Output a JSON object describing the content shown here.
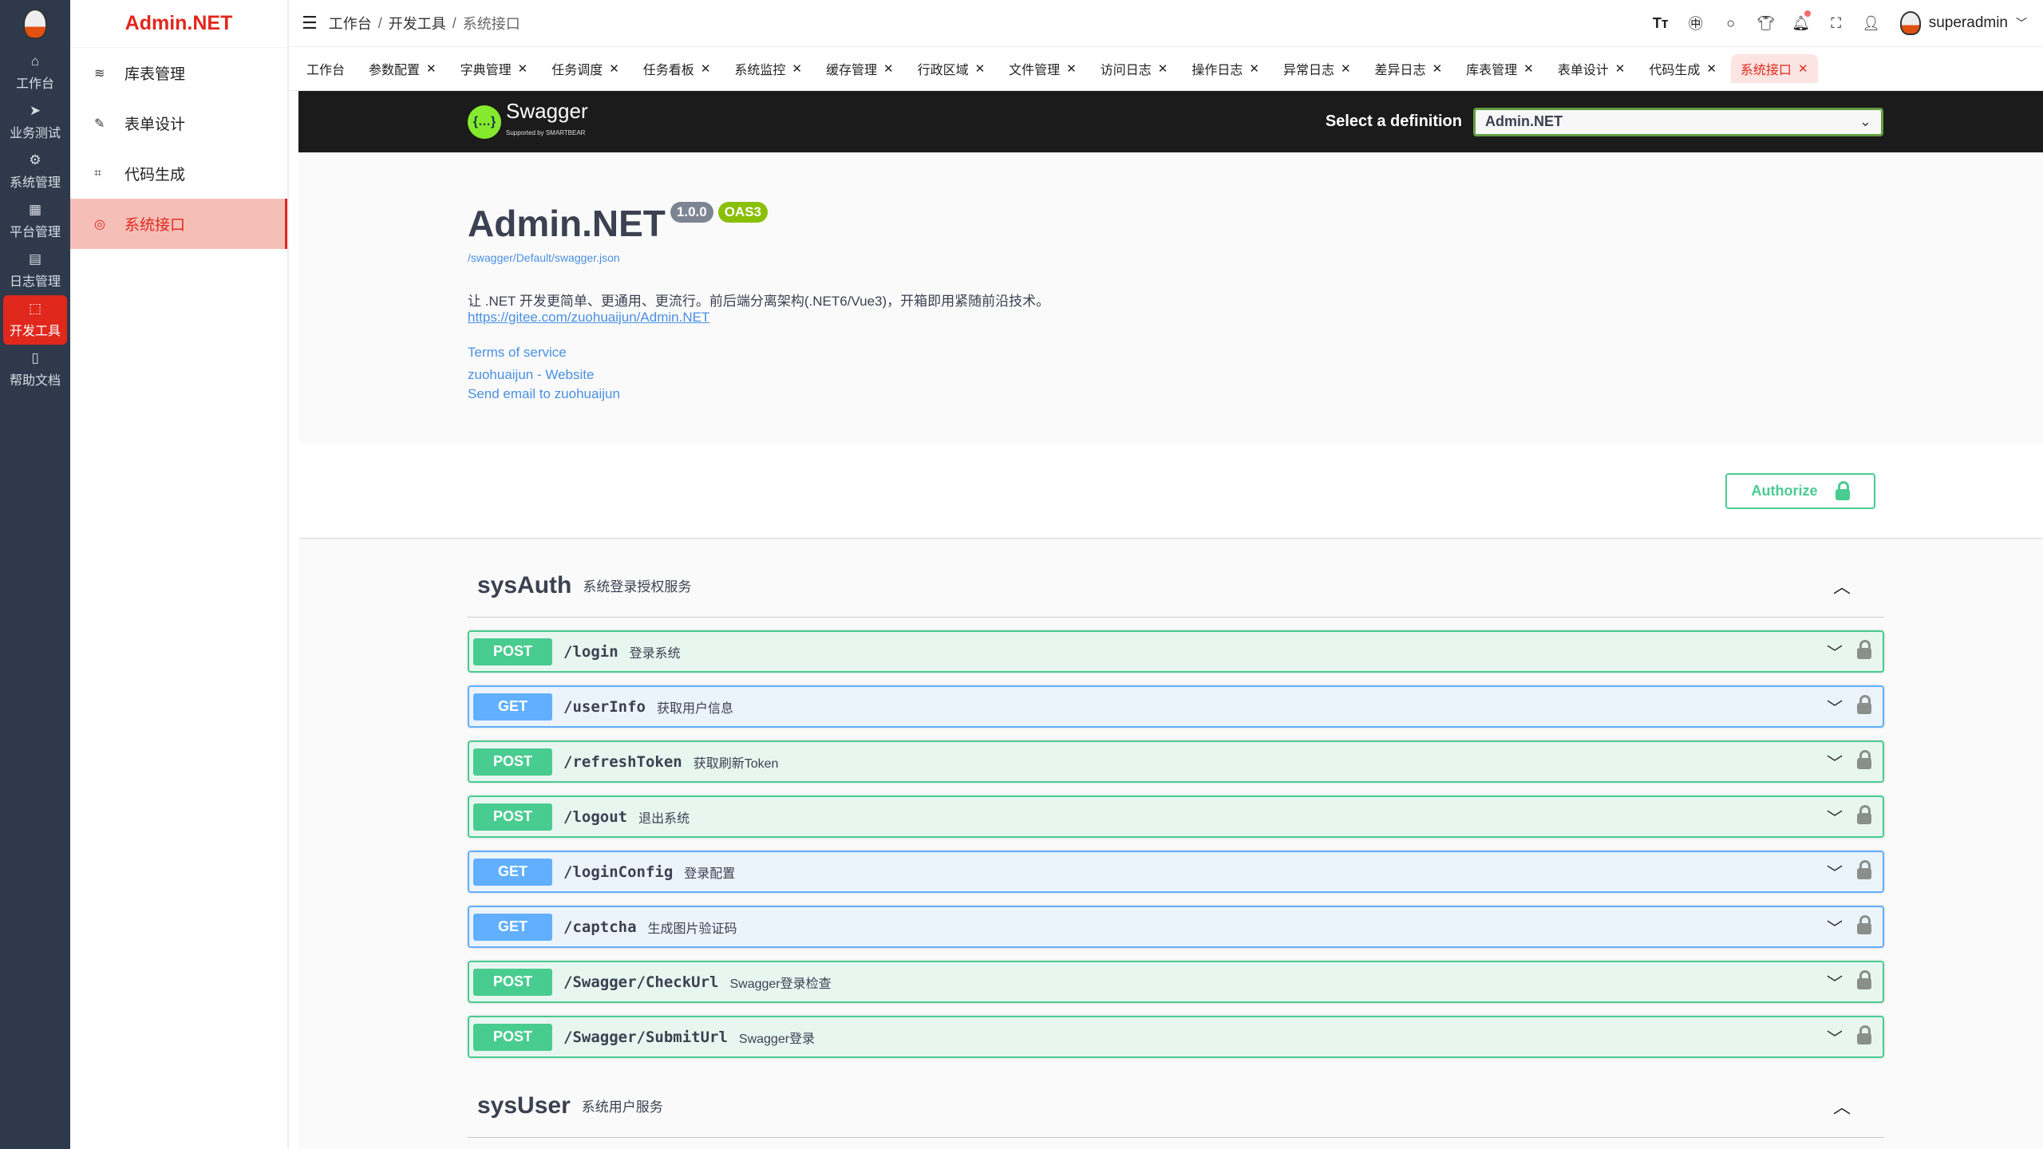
{
  "rail": {
    "items": [
      {
        "label": "工作台",
        "icon": "home-icon",
        "glyph": "⌂"
      },
      {
        "label": "业务测试",
        "icon": "send-icon",
        "glyph": "➤"
      },
      {
        "label": "系统管理",
        "icon": "gear-icon",
        "glyph": "⚙"
      },
      {
        "label": "平台管理",
        "icon": "grid-icon",
        "glyph": "▦"
      },
      {
        "label": "日志管理",
        "icon": "document-icon",
        "glyph": "▤"
      },
      {
        "label": "开发工具",
        "icon": "chip-icon",
        "glyph": "⬚",
        "active": true
      },
      {
        "label": "帮助文档",
        "icon": "book-icon",
        "glyph": "▯"
      }
    ]
  },
  "sidebar": {
    "brand": "Admin.NET",
    "items": [
      {
        "label": "库表管理",
        "glyph": "≋",
        "icon": "database-icon"
      },
      {
        "label": "表单设计",
        "glyph": "✎",
        "icon": "edit-icon"
      },
      {
        "label": "代码生成",
        "glyph": "⌗",
        "icon": "crop-icon"
      },
      {
        "label": "系统接口",
        "glyph": "◎",
        "icon": "lifebuoy-icon",
        "active": true
      }
    ]
  },
  "header": {
    "breadcrumb": [
      "工作台",
      "开发工具",
      "系统接口"
    ],
    "user": "superadmin"
  },
  "tabs": [
    {
      "label": "工作台",
      "closable": false
    },
    {
      "label": "参数配置"
    },
    {
      "label": "字典管理"
    },
    {
      "label": "任务调度"
    },
    {
      "label": "任务看板"
    },
    {
      "label": "系统监控"
    },
    {
      "label": "缓存管理"
    },
    {
      "label": "行政区域"
    },
    {
      "label": "文件管理"
    },
    {
      "label": "访问日志"
    },
    {
      "label": "操作日志"
    },
    {
      "label": "异常日志"
    },
    {
      "label": "差异日志"
    },
    {
      "label": "库表管理"
    },
    {
      "label": "表单设计"
    },
    {
      "label": "代码生成"
    },
    {
      "label": "系统接口",
      "active": true
    }
  ],
  "swagger": {
    "logo_text": "Swagger",
    "logo_sub": "Supported by SMARTBEAR",
    "select_label": "Select a definition",
    "selected": "Admin.NET",
    "title": "Admin.NET",
    "version": "1.0.0",
    "oas": "OAS3",
    "url": "/swagger/Default/swagger.json",
    "description": "让 .NET 开发更简单、更通用、更流行。前后端分离架构(.NET6/Vue3)，开箱即用紧随前沿技术。",
    "repo": "https://gitee.com/zuohuaijun/Admin.NET",
    "terms": "Terms of service",
    "website": "zuohuaijun - Website",
    "email": "Send email to zuohuaijun",
    "authorize": "Authorize",
    "tags": [
      {
        "name": "sysAuth",
        "desc": "系统登录授权服务",
        "ops": [
          {
            "method": "POST",
            "path": "/login",
            "summary": "登录系统"
          },
          {
            "method": "GET",
            "path": "/userInfo",
            "summary": "获取用户信息"
          },
          {
            "method": "POST",
            "path": "/refreshToken",
            "summary": "获取刷新Token"
          },
          {
            "method": "POST",
            "path": "/logout",
            "summary": "退出系统"
          },
          {
            "method": "GET",
            "path": "/loginConfig",
            "summary": "登录配置"
          },
          {
            "method": "GET",
            "path": "/captcha",
            "summary": "生成图片验证码"
          },
          {
            "method": "POST",
            "path": "/Swagger/CheckUrl",
            "summary": "Swagger登录检查"
          },
          {
            "method": "POST",
            "path": "/Swagger/SubmitUrl",
            "summary": "Swagger登录"
          }
        ]
      },
      {
        "name": "sysUser",
        "desc": "系统用户服务",
        "ops": []
      }
    ]
  },
  "colors": {
    "accent": "#e0281c",
    "post": "#49cc90",
    "get": "#61affe",
    "rail": "#2e3a4b"
  }
}
